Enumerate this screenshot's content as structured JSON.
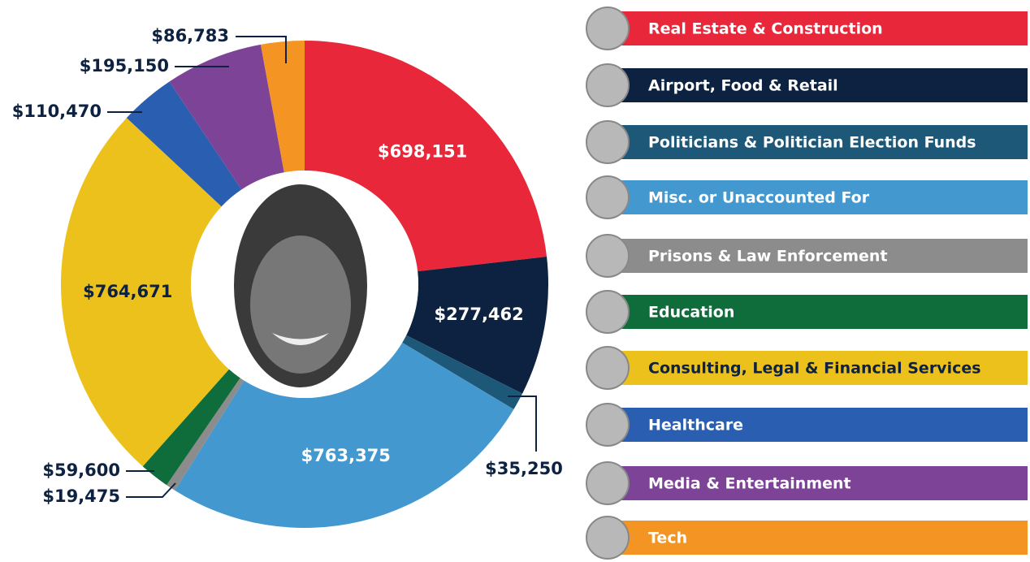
{
  "chart_data": {
    "type": "donut",
    "categories": [
      "Real Estate & Construction",
      "Airport, Food & Retail",
      "Politicians & Politician Election Funds",
      "Misc. or Unaccounted For",
      "Prisons & Law Enforcement",
      "Education",
      "Consulting, Legal & Financial Services",
      "Healthcare",
      "Media & Entertainment",
      "Tech"
    ],
    "values": [
      698151,
      277462,
      35250,
      763375,
      19475,
      59600,
      764671,
      110470,
      195150,
      86783
    ],
    "value_labels": [
      "$698,151",
      "$277,462",
      "$35,250",
      "$763,375",
      "$19,475",
      "$59,600",
      "$764,671",
      "$110,470",
      "$195,150",
      "$86,783"
    ],
    "colors": [
      "#e8283a",
      "#0c2240",
      "#1e5878",
      "#4398d0",
      "#8c8c8c",
      "#0f6c3b",
      "#edc11c",
      "#2a5eb0",
      "#7d4397",
      "#f39423"
    ]
  }
}
